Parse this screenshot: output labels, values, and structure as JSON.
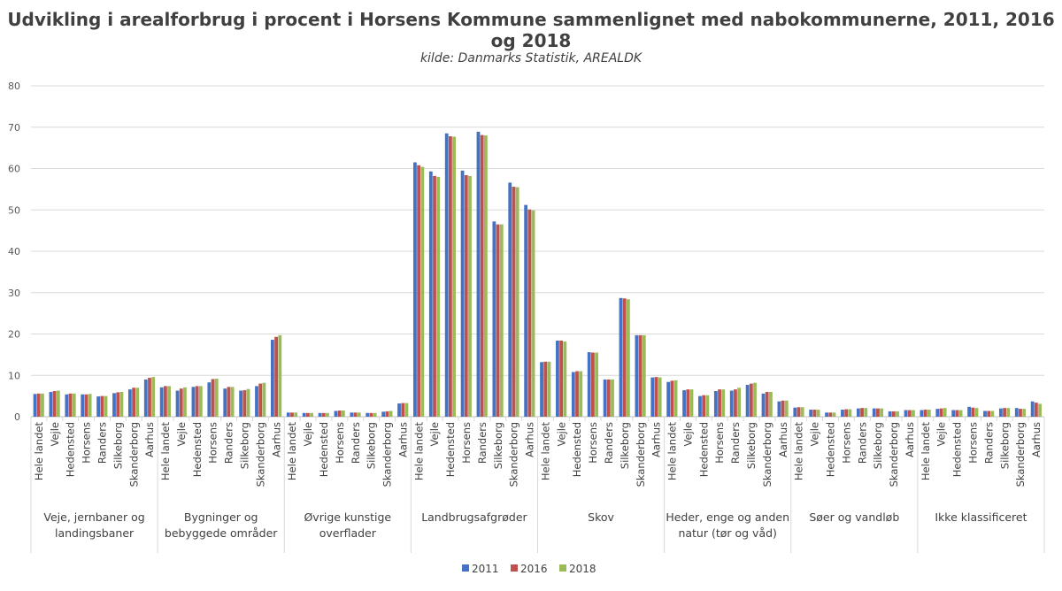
{
  "chart_data": {
    "type": "bar",
    "title": "Udvikling i arealforbrug i procent i Horsens Kommune sammenlignet med nabokommunerne, 2011, 2016 og 2018",
    "subtitle": "kilde: Danmarks Statistik, AREALDK",
    "ylim": [
      0,
      80
    ],
    "yticks": [
      0,
      10,
      20,
      30,
      40,
      50,
      60,
      70,
      80
    ],
    "grid": true,
    "legend_position": "bottom",
    "municipalities": [
      "Hele landet",
      "Vejle",
      "Hedensted",
      "Horsens",
      "Randers",
      "Silkeborg",
      "Skanderborg",
      "Aarhus"
    ],
    "groups": [
      "Veje, jernbaner og landingsbaner",
      "Bygninger og bebyggede områder",
      "Øvrige kunstige overflader",
      "Landbrugsafgrøder",
      "Skov",
      "Heder, enge og anden natur (tør og våd)",
      "Søer og vandløb",
      "Ikke klassificeret"
    ],
    "series": [
      {
        "name": "2011",
        "color": "#4472C4",
        "values": [
          [
            5.5,
            6.0,
            5.4,
            5.4,
            4.9,
            5.7,
            6.6,
            9.0
          ],
          [
            7.1,
            6.3,
            7.2,
            8.3,
            6.8,
            6.3,
            7.4,
            18.6
          ],
          [
            1.0,
            0.9,
            0.9,
            1.4,
            1.0,
            0.9,
            1.2,
            3.2
          ],
          [
            61.5,
            59.3,
            68.5,
            59.5,
            68.9,
            47.2,
            56.6,
            51.2
          ],
          [
            13.2,
            18.4,
            10.8,
            15.6,
            9.0,
            28.7,
            19.7,
            9.5
          ],
          [
            8.4,
            6.4,
            5.0,
            6.2,
            6.3,
            7.7,
            5.6,
            3.7
          ],
          [
            2.2,
            1.7,
            1.0,
            1.7,
            2.0,
            2.0,
            1.3,
            1.6
          ],
          [
            1.6,
            1.9,
            1.6,
            2.4,
            1.4,
            2.0,
            2.1,
            3.7
          ]
        ]
      },
      {
        "name": "2016",
        "color": "#C0504D",
        "values": [
          [
            5.6,
            6.2,
            5.6,
            5.4,
            5.0,
            5.9,
            7.0,
            9.4
          ],
          [
            7.4,
            6.8,
            7.4,
            9.1,
            7.2,
            6.4,
            8.0,
            19.3
          ],
          [
            1.0,
            0.9,
            0.9,
            1.5,
            1.0,
            0.9,
            1.3,
            3.3
          ],
          [
            60.8,
            58.2,
            67.8,
            58.4,
            68.1,
            46.5,
            55.6,
            50.1
          ],
          [
            13.3,
            18.4,
            11.0,
            15.5,
            9.0,
            28.6,
            19.7,
            9.6
          ],
          [
            8.7,
            6.6,
            5.2,
            6.6,
            6.6,
            8.0,
            6.0,
            3.9
          ],
          [
            2.3,
            1.7,
            1.0,
            1.8,
            2.1,
            2.0,
            1.3,
            1.6
          ],
          [
            1.7,
            2.0,
            1.6,
            2.2,
            1.4,
            2.1,
            1.9,
            3.4
          ]
        ]
      },
      {
        "name": "2018",
        "color": "#9BBB59",
        "values": [
          [
            5.6,
            6.3,
            5.6,
            5.5,
            5.0,
            6.0,
            7.0,
            9.6
          ],
          [
            7.4,
            7.1,
            7.4,
            9.2,
            7.2,
            6.7,
            8.2,
            19.7
          ],
          [
            1.0,
            0.9,
            0.9,
            1.5,
            1.0,
            0.9,
            1.4,
            3.3
          ],
          [
            60.4,
            58.0,
            67.7,
            58.2,
            68.0,
            46.5,
            55.5,
            49.9
          ],
          [
            13.3,
            18.2,
            11.0,
            15.5,
            9.0,
            28.4,
            19.7,
            9.5
          ],
          [
            8.8,
            6.6,
            5.2,
            6.6,
            7.0,
            8.2,
            6.0,
            3.9
          ],
          [
            2.3,
            1.7,
            1.0,
            1.8,
            2.1,
            2.0,
            1.3,
            1.6
          ],
          [
            1.7,
            2.1,
            1.6,
            2.1,
            1.4,
            2.1,
            1.9,
            3.1
          ]
        ]
      }
    ]
  }
}
